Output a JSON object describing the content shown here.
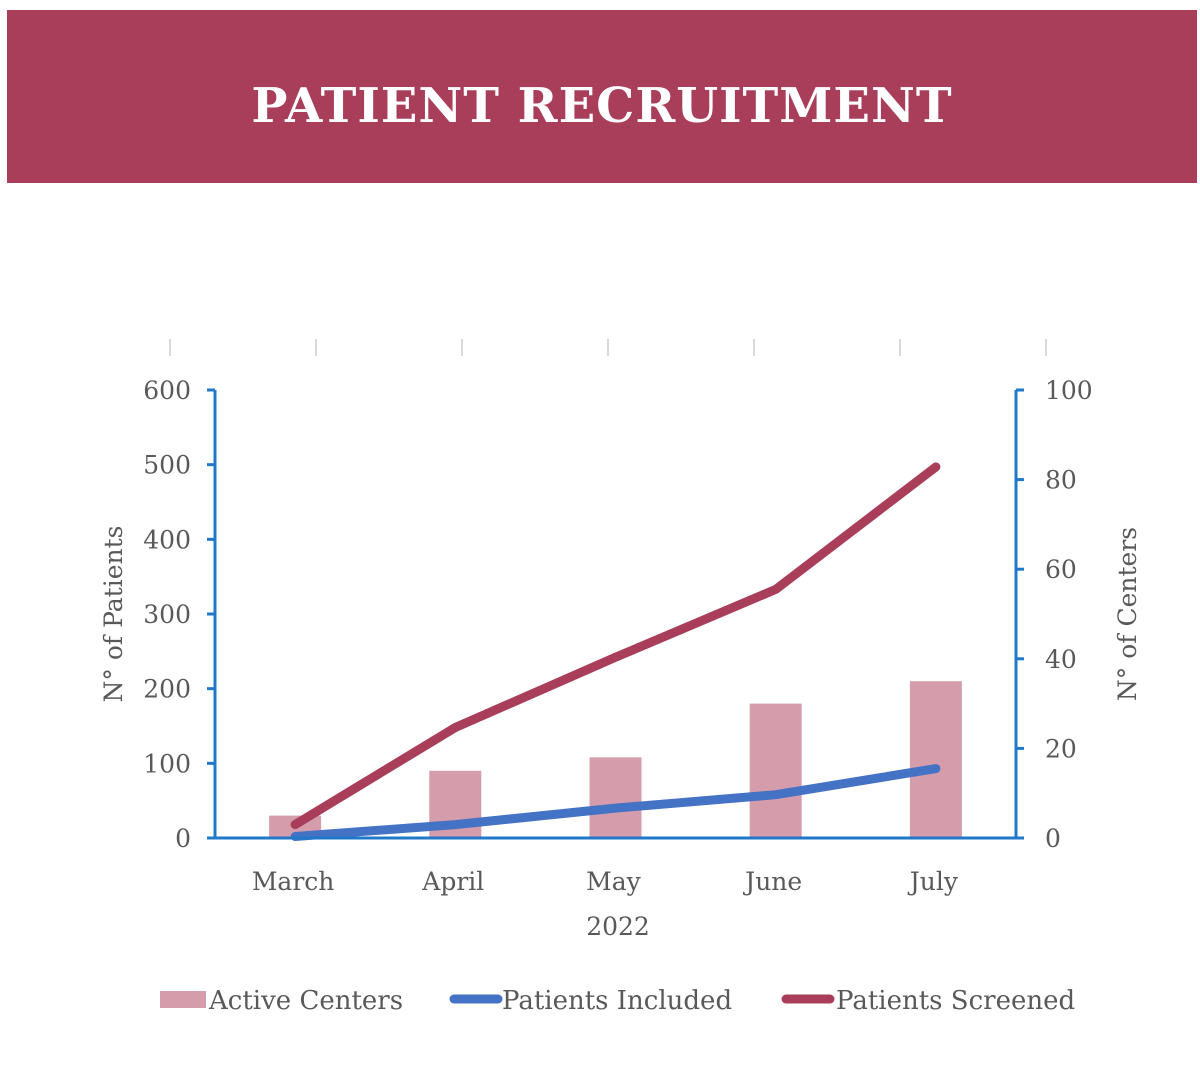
{
  "header": {
    "title": "PATIENT RECRUITMENT"
  },
  "chart_data": {
    "type": "bar",
    "categories": [
      "March",
      "April",
      "May",
      "June",
      "July"
    ],
    "xlabel": "2022",
    "ylabel": "N° of Patients",
    "y2label": "N° of Centers",
    "ylim": [
      0,
      600
    ],
    "y2lim": [
      0,
      100
    ],
    "yticks": [
      0,
      100,
      200,
      300,
      400,
      500,
      600
    ],
    "y2ticks": [
      0,
      20,
      40,
      60,
      80,
      100
    ],
    "grid": false,
    "legend_position": "bottom",
    "series": [
      {
        "name": "Active Centers",
        "type": "bar",
        "axis": "right",
        "color": "#D59CAC",
        "values": [
          5,
          15,
          18,
          30,
          35
        ]
      },
      {
        "name": "Patients Included",
        "type": "line",
        "axis": "left",
        "color": "#4472C4",
        "values": [
          2,
          18,
          40,
          58,
          93
        ]
      },
      {
        "name": "Patients Screened",
        "type": "line",
        "axis": "left",
        "color": "#A93E5A",
        "values": [
          18,
          148,
          242,
          333,
          497
        ]
      }
    ]
  },
  "colors": {
    "banner": "#A93E5A",
    "axis": "#1F78C8",
    "text": "#595959",
    "top_ticks": "#D9D9D9"
  }
}
